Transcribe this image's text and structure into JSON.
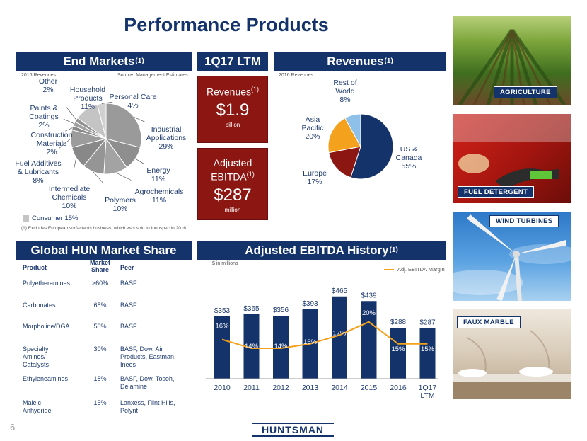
{
  "title": "Performance Products",
  "page_number": "6",
  "logo_text": "HUNTSMAN",
  "end_markets": {
    "header": "End Markets",
    "header_sup": "(1)",
    "note_left": "2016 Revenues",
    "note_right": "Source: Management Estimates",
    "footnote": "(1) Excludes European surfactants business, which was sold to Innospec in 2016",
    "legend_consumer": "Consumer 15%",
    "slices": [
      {
        "name": "Industrial Applications",
        "label": "Industrial\nApplications\n29%",
        "value": 29,
        "color": "#9a9a9a"
      },
      {
        "name": "Energy",
        "label": "Energy\n11%",
        "value": 11,
        "color": "#8e8e8e"
      },
      {
        "name": "Agrochemicals",
        "label": "Agrochemicals\n11%",
        "value": 11,
        "color": "#a3a3a3"
      },
      {
        "name": "Polymers",
        "label": "Polymers\n10%",
        "value": 10,
        "color": "#959595"
      },
      {
        "name": "Intermediate Chemicals",
        "label": "Intermediate\nChemicals\n10%",
        "value": 10,
        "color": "#888888"
      },
      {
        "name": "Fuel Additives & Lubricants",
        "label": "Fuel Additives\n& Lubricants\n8%",
        "value": 8,
        "color": "#9c9c9c"
      },
      {
        "name": "Construction Materials",
        "label": "Construction\nMaterials\n2%",
        "value": 2,
        "color": "#8a8a8a"
      },
      {
        "name": "Paints & Coatings",
        "label": "Paints &\nCoatings\n2%",
        "value": 2,
        "color": "#a0a0a0"
      },
      {
        "name": "Other",
        "label": "Other\n2%",
        "value": 2,
        "color": "#939393"
      },
      {
        "name": "Household Products",
        "label": "Household\nProducts\n11%",
        "value": 11,
        "color": "#c4c4c4"
      },
      {
        "name": "Personal Care",
        "label": "Personal Care\n4%",
        "value": 4,
        "color": "#d0d0d0"
      }
    ]
  },
  "ltm": {
    "header": "1Q17 LTM",
    "revenues_label": "Revenues",
    "revenues_sup": "(1)",
    "revenues_value": "$1.9",
    "revenues_unit": "billion",
    "ebitda_label_1": "Adjusted",
    "ebitda_label_2": "EBITDA",
    "ebitda_sup": "(1)",
    "ebitda_value": "$287",
    "ebitda_unit": "million"
  },
  "revenues": {
    "header": "Revenues",
    "header_sup": "(1)",
    "note": "2016 Revenues",
    "slices": [
      {
        "name": "US & Canada",
        "label": "US &\nCanada\n55%",
        "value": 55,
        "color": "#14336b"
      },
      {
        "name": "Europe",
        "label": "Europe\n17%",
        "value": 17,
        "color": "#8c1712"
      },
      {
        "name": "Asia Pacific",
        "label": "Asia\nPacific\n20%",
        "value": 20,
        "color": "#f4a11d"
      },
      {
        "name": "Rest of World",
        "label": "Rest of\nWorld\n8%",
        "value": 8,
        "color": "#8fc0ea"
      }
    ]
  },
  "market_share": {
    "header": "Global HUN  Market Share",
    "columns": [
      "Product",
      "Market\nShare",
      "Peer"
    ],
    "rows": [
      {
        "product": "Polyetheramines",
        "share": ">60%",
        "peer": "BASF"
      },
      {
        "product": "Carbonates",
        "share": "65%",
        "peer": "BASF"
      },
      {
        "product": "Morpholine/DGA",
        "share": "50%",
        "peer": "BASF"
      },
      {
        "product": "Specialty\nAmines/\nCatalysts",
        "share": "30%",
        "peer": "BASF, Dow, Air\nProducts, Eastman,\nIneos"
      },
      {
        "product": "Ethyleneamines",
        "share": "18%",
        "peer": "BASF, Dow, Tosoh,\nDelamine"
      },
      {
        "product": "Maleic\nAnhydride",
        "share": "15%",
        "peer": "Lanxess, Flint Hills,\nPolynt"
      }
    ]
  },
  "ebitda_history": {
    "header": "Adjusted EBITDA History",
    "header_sup": "(1)",
    "unit_note": "$ in millions",
    "legend": "Adj. EBITDA Margin"
  },
  "chart_data": {
    "type": "bar",
    "categories": [
      "2010",
      "2011",
      "2012",
      "2013",
      "2014",
      "2015",
      "2016",
      "1Q17\nLTM"
    ],
    "series": [
      {
        "name": "Adjusted EBITDA",
        "values": [
          353,
          365,
          356,
          393,
          465,
          439,
          288,
          287
        ],
        "labels": [
          "$353",
          "$365",
          "$356",
          "$393",
          "$465",
          "$439",
          "$288",
          "$287"
        ],
        "color": "#14336b"
      },
      {
        "name": "Adj. EBITDA Margin",
        "values": [
          16,
          14,
          14,
          15,
          17,
          20,
          15,
          15
        ],
        "labels": [
          "16%",
          "14%",
          "14%",
          "15%",
          "17%",
          "20%",
          "15%",
          "15%"
        ],
        "color": "#f4a11d"
      }
    ],
    "ylim": [
      0,
      500
    ],
    "legend": "top-right"
  },
  "images": [
    {
      "name": "agriculture",
      "tag": "AGRICULTURE"
    },
    {
      "name": "fuel-detergent",
      "tag": "FUEL DETERGENT"
    },
    {
      "name": "wind-turbines",
      "tag": "WIND TURBINES"
    },
    {
      "name": "faux-marble",
      "tag": "FAUX MARBLE"
    }
  ]
}
